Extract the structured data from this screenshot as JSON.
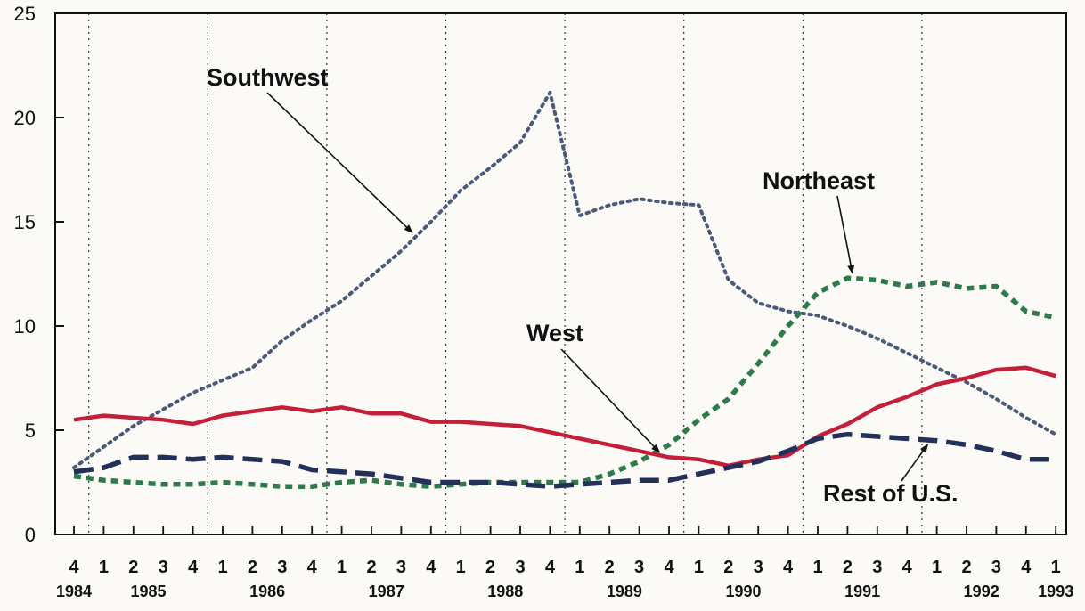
{
  "chart_data": {
    "type": "line",
    "title": "",
    "xlabel": "",
    "ylabel": "",
    "ylim": [
      0,
      25
    ],
    "yticks": [
      0,
      5,
      10,
      15,
      20,
      25
    ],
    "grid": "vertical dotted lines between years",
    "legend": "none (series labeled directly with arrows)",
    "x": [
      "1984 Q4",
      "1985 Q1",
      "1985 Q2",
      "1985 Q3",
      "1985 Q4",
      "1986 Q1",
      "1986 Q2",
      "1986 Q3",
      "1986 Q4",
      "1987 Q1",
      "1987 Q2",
      "1987 Q3",
      "1987 Q4",
      "1988 Q1",
      "1988 Q2",
      "1988 Q3",
      "1988 Q4",
      "1989 Q1",
      "1989 Q2",
      "1989 Q3",
      "1989 Q4",
      "1990 Q1",
      "1990 Q2",
      "1990 Q3",
      "1990 Q4",
      "1991 Q1",
      "1991 Q2",
      "1991 Q3",
      "1991 Q4",
      "1992 Q1",
      "1992 Q2",
      "1992 Q3",
      "1992 Q4",
      "1993 Q1"
    ],
    "quarter_labels": [
      "4",
      "1",
      "2",
      "3",
      "4",
      "1",
      "2",
      "3",
      "4",
      "1",
      "2",
      "3",
      "4",
      "1",
      "2",
      "3",
      "4",
      "1",
      "2",
      "3",
      "4",
      "1",
      "2",
      "3",
      "4",
      "1",
      "2",
      "3",
      "4",
      "1",
      "2",
      "3",
      "4",
      "1"
    ],
    "year_labels": [
      {
        "text": "1984",
        "index": 0
      },
      {
        "text": "1985",
        "index": 2.5
      },
      {
        "text": "1986",
        "index": 6.5
      },
      {
        "text": "1987",
        "index": 10.5
      },
      {
        "text": "1988",
        "index": 14.5
      },
      {
        "text": "1989",
        "index": 18.5
      },
      {
        "text": "1990",
        "index": 22.5
      },
      {
        "text": "1991",
        "index": 26.5
      },
      {
        "text": "1992",
        "index": 30.5
      },
      {
        "text": "1993",
        "index": 33
      }
    ],
    "year_boundaries": [
      0.5,
      4.5,
      8.5,
      12.5,
      16.5,
      20.5,
      24.5,
      28.5
    ],
    "series": [
      {
        "name": "Southwest",
        "color": "#4a5a78",
        "style": "dotted",
        "values": [
          3.2,
          4.2,
          5.2,
          6.0,
          6.8,
          7.4,
          8.0,
          9.3,
          10.3,
          11.2,
          12.4,
          13.6,
          15.0,
          16.5,
          17.6,
          18.8,
          21.2,
          15.3,
          15.8,
          16.1,
          15.9,
          15.8,
          12.2,
          11.1,
          10.7,
          10.5,
          10.0,
          9.4,
          8.7,
          8.0,
          7.3,
          6.5,
          5.6,
          4.8
        ]
      },
      {
        "name": "Northeast",
        "color": "#2d7a4a",
        "style": "dashed-short",
        "values": [
          2.8,
          2.6,
          2.5,
          2.4,
          2.4,
          2.5,
          2.4,
          2.3,
          2.3,
          2.5,
          2.6,
          2.4,
          2.3,
          2.4,
          2.5,
          2.5,
          2.5,
          2.5,
          2.9,
          3.5,
          4.3,
          5.5,
          6.5,
          8.2,
          10.0,
          11.6,
          12.3,
          12.2,
          11.9,
          12.1,
          11.8,
          11.9,
          10.7,
          10.4
        ]
      },
      {
        "name": "West",
        "color": "#c41e3a",
        "style": "solid",
        "values": [
          5.5,
          5.7,
          5.6,
          5.5,
          5.3,
          5.7,
          5.9,
          6.1,
          5.9,
          6.1,
          5.8,
          5.8,
          5.4,
          5.4,
          5.3,
          5.2,
          4.9,
          4.6,
          4.3,
          4.0,
          3.7,
          3.6,
          3.3,
          3.6,
          3.8,
          4.7,
          5.3,
          6.1,
          6.6,
          7.2,
          7.5,
          7.9,
          8.0,
          7.6
        ]
      },
      {
        "name": "Rest of U.S.",
        "color": "#22305a",
        "style": "dashed-long",
        "values": [
          3.0,
          3.2,
          3.7,
          3.7,
          3.6,
          3.7,
          3.6,
          3.5,
          3.1,
          3.0,
          2.9,
          2.7,
          2.5,
          2.5,
          2.5,
          2.4,
          2.3,
          2.4,
          2.5,
          2.6,
          2.6,
          2.9,
          3.2,
          3.5,
          4.0,
          4.6,
          4.8,
          4.7,
          4.6,
          4.5,
          4.3,
          4.0,
          3.6,
          3.6
        ]
      }
    ],
    "annotations": [
      {
        "text": "Southwest",
        "series": "Southwest",
        "point_index": 11.5
      },
      {
        "text": "Northeast",
        "series": "Northeast",
        "point_index": 26.2
      },
      {
        "text": "West",
        "series": "West",
        "point_index": 19.8
      },
      {
        "text": "Rest of U.S.",
        "series": "Rest of U.S.",
        "point_index": 28.8
      }
    ]
  }
}
